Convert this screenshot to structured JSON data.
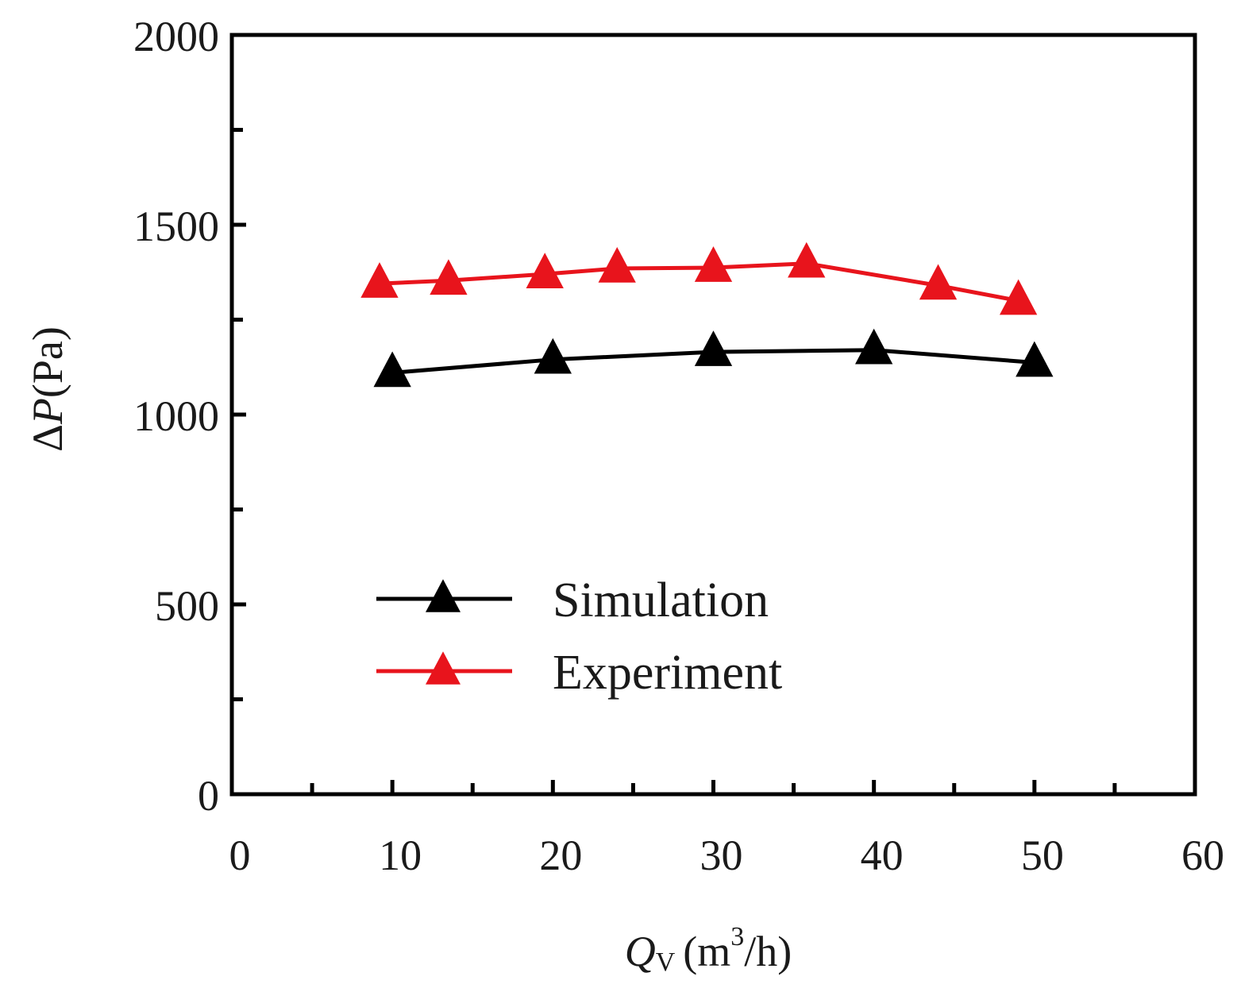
{
  "chart_data": {
    "type": "line",
    "title": "",
    "xlabel": "Qv (m3/h)",
    "xlabel_parts": {
      "symbol": "Q",
      "subscript": "V",
      "unit_open": "(m",
      "superscript": "3",
      "unit_close": "/h)"
    },
    "ylabel": "ΔP(Pa)",
    "ylabel_parts": {
      "delta": "Δ",
      "symbol": "P",
      "unit": "(Pa)"
    },
    "xlim": [
      0,
      60
    ],
    "ylim": [
      0,
      2000
    ],
    "xticks": [
      0,
      10,
      20,
      30,
      40,
      50,
      60
    ],
    "xtick_labels": [
      "0",
      "10",
      "20",
      "30",
      "40",
      "50",
      "60"
    ],
    "yticks": [
      0,
      500,
      1000,
      1500,
      2000
    ],
    "ytick_labels": [
      "0",
      "500",
      "1000",
      "1500",
      "2000"
    ],
    "x_minor_step": 5,
    "y_minor_step": 250,
    "grid": false,
    "legend_position": "lower-center",
    "series": [
      {
        "name": "Simulation",
        "color": "#000000",
        "marker": "triangle",
        "x": [
          10,
          20,
          30,
          40,
          50
        ],
        "y": [
          1110,
          1145,
          1165,
          1170,
          1137
        ]
      },
      {
        "name": "Experiment",
        "color": "#e8141c",
        "marker": "triangle",
        "x": [
          9.2,
          13.5,
          19.5,
          24.0,
          30.0,
          35.8,
          44.0,
          49.0
        ],
        "y": [
          1345,
          1353,
          1370,
          1385,
          1387,
          1398,
          1340,
          1300
        ]
      }
    ]
  }
}
